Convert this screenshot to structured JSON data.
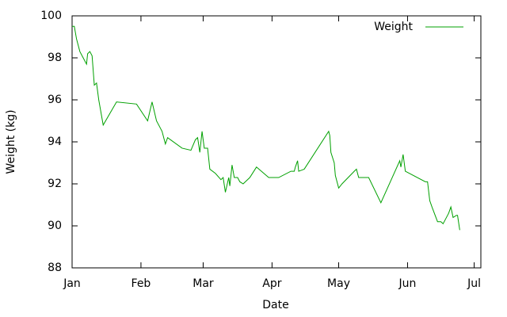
{
  "chart_data": {
    "type": "line",
    "xlabel": "Date",
    "ylabel": "Weight (kg)",
    "x": [
      0,
      1,
      2,
      3.5,
      5,
      6.5,
      7,
      8,
      9,
      10,
      11,
      12,
      14,
      20,
      29,
      34,
      36,
      38,
      39.5,
      40.5,
      42,
      43,
      49.5,
      53.5,
      55.5,
      56.5,
      57.5,
      58.5,
      59.5,
      61,
      62,
      64.5,
      67,
      68,
      69,
      70.5,
      71,
      72,
      73,
      74.5,
      75.5,
      77,
      80,
      83,
      88.5,
      93,
      98.5,
      100,
      100.5,
      101.5,
      102,
      104.5,
      115.5,
      116,
      116.5,
      118,
      118.5,
      120,
      121.5,
      127,
      128,
      129,
      133.5,
      139,
      147.5,
      148,
      149,
      150,
      159,
      160,
      161,
      162,
      164.5,
      166,
      167,
      168,
      169.5,
      170.5,
      171.5,
      173,
      173.5,
      174.5
    ],
    "series": [
      {
        "name": "Weight",
        "color": "#00a000",
        "values": [
          99.5,
          99.5,
          98.9,
          98.3,
          98.0,
          97.7,
          98.2,
          98.3,
          98.1,
          96.7,
          96.8,
          96.0,
          94.8,
          95.9,
          95.8,
          95.0,
          95.9,
          95.0,
          94.7,
          94.5,
          93.9,
          94.2,
          93.7,
          93.6,
          94.1,
          94.2,
          93.5,
          94.5,
          93.7,
          93.7,
          92.7,
          92.5,
          92.2,
          92.3,
          91.6,
          92.3,
          91.9,
          92.9,
          92.3,
          92.3,
          92.1,
          92.0,
          92.3,
          92.8,
          92.3,
          92.3,
          92.6,
          92.6,
          92.8,
          93.1,
          92.6,
          92.7,
          94.5,
          94.3,
          93.5,
          93.0,
          92.4,
          91.8,
          92.0,
          92.6,
          92.7,
          92.3,
          92.3,
          91.1,
          93.1,
          92.8,
          93.4,
          92.6,
          92.1,
          92.1,
          91.2,
          90.9,
          90.2,
          90.2,
          90.1,
          90.3,
          90.6,
          90.9,
          90.4,
          90.5,
          90.5,
          89.8
        ]
      }
    ],
    "xlim": [
      0,
      184
    ],
    "xticks": [
      {
        "value": 0,
        "label": "Jan"
      },
      {
        "value": 31,
        "label": "Feb"
      },
      {
        "value": 59,
        "label": "Mar"
      },
      {
        "value": 90,
        "label": "Apr"
      },
      {
        "value": 120,
        "label": "May"
      },
      {
        "value": 151,
        "label": "Jun"
      },
      {
        "value": 181,
        "label": "Jul"
      }
    ],
    "ylim": [
      88,
      100
    ],
    "yticks": [
      88,
      90,
      92,
      94,
      96,
      98,
      100
    ],
    "legend": "top-right"
  }
}
